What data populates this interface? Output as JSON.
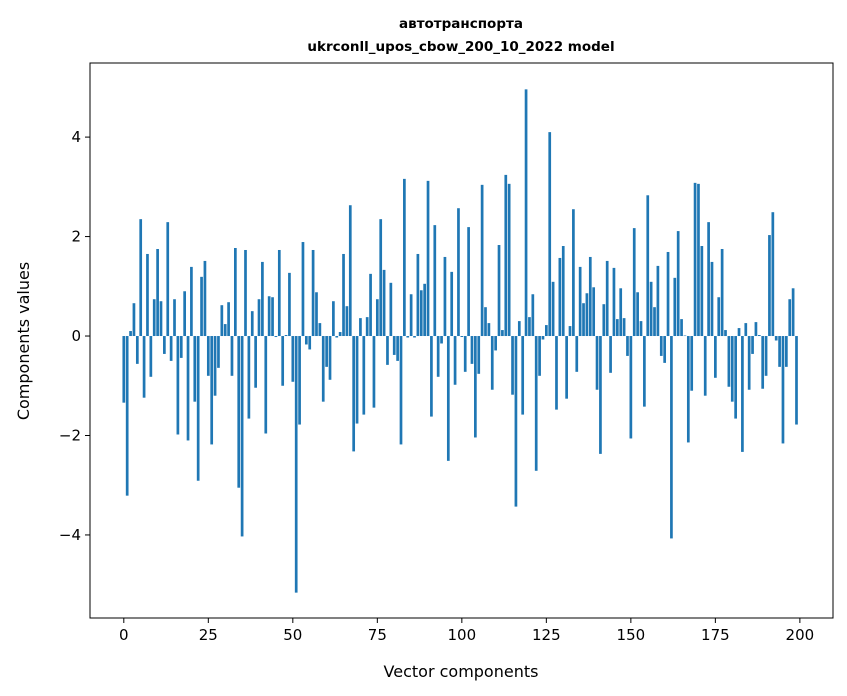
{
  "chart_data": {
    "type": "bar",
    "title": [
      "автотранспорта",
      "ukrconll_upos_cbow_200_10_2022 model"
    ],
    "xlabel": "Vector components",
    "ylabel": "Components values",
    "xlim": [
      -10,
      209.8
    ],
    "ylim": [
      -5.67,
      5.49
    ],
    "xticks": [
      0,
      25,
      50,
      75,
      100,
      125,
      150,
      175,
      200
    ],
    "yticks": [
      -4,
      -2,
      0,
      2,
      4
    ],
    "grid": false,
    "color": "#1f77b4",
    "values": [
      -1.34,
      -3.21,
      0.1,
      0.66,
      -0.56,
      2.35,
      -1.24,
      1.65,
      -0.82,
      0.74,
      1.75,
      0.7,
      -0.36,
      2.29,
      -0.5,
      0.74,
      -1.98,
      -0.44,
      0.9,
      -2.1,
      1.39,
      -1.32,
      -2.91,
      1.19,
      1.51,
      -0.8,
      -2.18,
      -1.2,
      -0.64,
      0.62,
      0.24,
      0.68,
      -0.8,
      1.77,
      -3.05,
      -4.03,
      1.73,
      -1.66,
      0.5,
      -1.04,
      0.74,
      1.49,
      -1.96,
      0.8,
      0.78,
      -0.02,
      1.73,
      -1.0,
      0.02,
      1.27,
      -0.92,
      -5.16,
      -1.78,
      1.89,
      -0.17,
      -0.27,
      1.73,
      0.88,
      0.26,
      -1.32,
      -0.62,
      -0.88,
      0.7,
      -0.03,
      0.08,
      1.65,
      0.6,
      2.63,
      -2.32,
      -1.76,
      0.36,
      -1.58,
      0.38,
      1.25,
      -1.44,
      0.74,
      2.35,
      1.33,
      -0.58,
      1.07,
      -0.38,
      -0.5,
      -2.18,
      3.16,
      -0.03,
      0.84,
      -0.03,
      1.65,
      0.92,
      1.05,
      3.12,
      -1.62,
      2.23,
      -0.82,
      -0.15,
      1.59,
      -2.51,
      1.29,
      -0.98,
      2.57,
      -0.02,
      -0.72,
      2.19,
      -0.56,
      -2.04,
      -0.76,
      3.04,
      0.58,
      0.26,
      -1.08,
      -0.29,
      1.83,
      0.12,
      3.24,
      3.06,
      -1.18,
      -3.43,
      0.3,
      -1.58,
      4.96,
      0.38,
      0.84,
      -2.71,
      -0.8,
      -0.07,
      0.22,
      4.1,
      1.09,
      -1.48,
      1.57,
      1.81,
      -1.26,
      0.2,
      2.55,
      -0.72,
      1.39,
      0.66,
      0.86,
      1.59,
      0.98,
      -1.08,
      -2.37,
      0.64,
      1.51,
      -0.74,
      1.37,
      0.34,
      0.96,
      0.36,
      -0.4,
      -2.06,
      2.17,
      0.88,
      0.3,
      -1.42,
      2.83,
      1.09,
      0.58,
      1.41,
      -0.4,
      -0.54,
      1.69,
      -4.07,
      1.17,
      2.11,
      0.34,
      0.01,
      -2.14,
      -1.1,
      3.08,
      3.06,
      1.81,
      -1.2,
      2.29,
      1.49,
      -0.84,
      0.78,
      1.75,
      0.12,
      -1.02,
      -1.32,
      -1.66,
      0.16,
      -2.33,
      0.26,
      -1.08,
      -0.36,
      0.28,
      0.02,
      -1.06,
      -0.8,
      2.03,
      2.49,
      -0.09,
      -0.62,
      -2.16,
      -0.62,
      0.74,
      0.96,
      -1.78
    ]
  }
}
